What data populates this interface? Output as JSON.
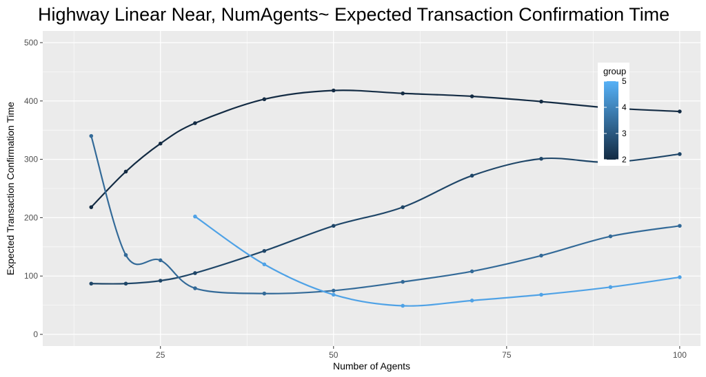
{
  "chart_data": {
    "type": "line",
    "title": "Highway Linear Near,  NumAgents~ Expected Transaction Confirmation Time",
    "xlabel": "Number of Agents",
    "ylabel": "Expected Transaction Confirmation Time",
    "xlim": [
      8,
      103
    ],
    "ylim": [
      -20,
      520
    ],
    "x_ticks": [
      25,
      50,
      75,
      100
    ],
    "y_ticks": [
      0,
      100,
      200,
      300,
      400,
      500
    ],
    "grid": true,
    "background": "#ebebeb",
    "legend": {
      "title": "group",
      "position": "right",
      "ticks": [
        2,
        3,
        4,
        5
      ],
      "low_color": "#132b43",
      "high_color": "#56b1f7",
      "range": [
        2,
        5
      ]
    },
    "series": [
      {
        "group": 2,
        "color": "#132b43",
        "x": [
          15,
          20,
          25,
          30,
          40,
          50,
          60,
          70,
          80,
          90,
          100
        ],
        "y": [
          218,
          279,
          327,
          362,
          403,
          418,
          413,
          408,
          399,
          388,
          382
        ]
      },
      {
        "group": 3,
        "color": "#1f4668",
        "x": [
          15,
          20,
          25,
          30,
          40,
          50,
          60,
          70,
          80,
          90,
          100
        ],
        "y": [
          87,
          87,
          92,
          105,
          143,
          186,
          218,
          272,
          301,
          295,
          309
        ]
      },
      {
        "group": 4,
        "color": "#336a98",
        "x": [
          15,
          20,
          25,
          30,
          40,
          50,
          60,
          70,
          80,
          90,
          100
        ],
        "y": [
          340,
          136,
          127,
          79,
          70,
          75,
          90,
          108,
          135,
          168,
          186
        ]
      },
      {
        "group": 5,
        "color": "#4fa2e6",
        "x": [
          30,
          40,
          50,
          60,
          70,
          80,
          90,
          100
        ],
        "y": [
          202,
          120,
          68,
          49,
          58,
          68,
          81,
          98
        ]
      }
    ]
  }
}
